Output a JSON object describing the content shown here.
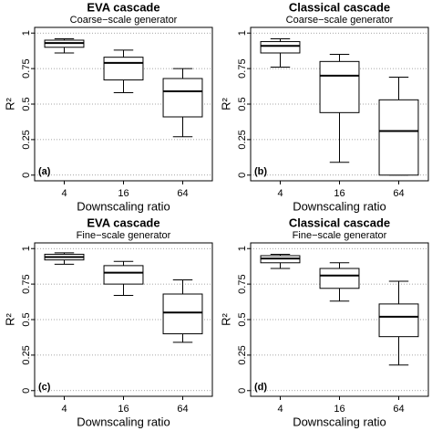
{
  "chart_data": [
    {
      "type": "box",
      "title": "EVA cascade",
      "subtitle": "Coarse−scale generator",
      "panel_label": "(a)",
      "x_label": "Downscaling ratio",
      "y_label": "R²",
      "categories": [
        "4",
        "16",
        "64"
      ],
      "boxes": [
        {
          "min": 0.86,
          "q1": 0.9,
          "median": 0.93,
          "q3": 0.95,
          "max": 0.96
        },
        {
          "min": 0.58,
          "q1": 0.67,
          "median": 0.79,
          "q3": 0.83,
          "max": 0.88
        },
        {
          "min": 0.27,
          "q1": 0.41,
          "median": 0.59,
          "q3": 0.68,
          "max": 0.75
        }
      ],
      "ylim": [
        -0.04,
        1.04
      ],
      "yticks": [
        0,
        0.25,
        0.5,
        0.75,
        1
      ],
      "grid": true
    },
    {
      "type": "box",
      "title": "Classical cascade",
      "subtitle": "Coarse−scale generator",
      "panel_label": "(b)",
      "x_label": "Downscaling ratio",
      "y_label": "R²",
      "categories": [
        "4",
        "16",
        "64"
      ],
      "boxes": [
        {
          "min": 0.76,
          "q1": 0.86,
          "median": 0.91,
          "q3": 0.94,
          "max": 0.96
        },
        {
          "min": 0.09,
          "q1": 0.44,
          "median": 0.7,
          "q3": 0.8,
          "max": 0.85
        },
        {
          "min": 0,
          "q1": 0,
          "median": 0.31,
          "q3": 0.53,
          "max": 0.69
        }
      ],
      "ylim": [
        -0.04,
        1.04
      ],
      "yticks": [
        0,
        0.25,
        0.5,
        0.75,
        1
      ],
      "grid": true
    },
    {
      "type": "box",
      "title": "EVA cascade",
      "subtitle": "Fine−scale generator",
      "panel_label": "(c)",
      "x_label": "Downscaling ratio",
      "y_label": "R²",
      "categories": [
        "4",
        "16",
        "64"
      ],
      "boxes": [
        {
          "min": 0.89,
          "q1": 0.92,
          "median": 0.94,
          "q3": 0.96,
          "max": 0.97
        },
        {
          "min": 0.67,
          "q1": 0.75,
          "median": 0.83,
          "q3": 0.88,
          "max": 0.91
        },
        {
          "min": 0.34,
          "q1": 0.4,
          "median": 0.55,
          "q3": 0.68,
          "max": 0.78
        }
      ],
      "ylim": [
        -0.04,
        1.04
      ],
      "yticks": [
        0,
        0.25,
        0.5,
        0.75,
        1
      ],
      "grid": true
    },
    {
      "type": "box",
      "title": "Classical cascade",
      "subtitle": "Fine−scale generator",
      "panel_label": "(d)",
      "x_label": "Downscaling ratio",
      "y_label": "R²",
      "categories": [
        "4",
        "16",
        "64"
      ],
      "boxes": [
        {
          "min": 0.86,
          "q1": 0.9,
          "median": 0.93,
          "q3": 0.95,
          "max": 0.96
        },
        {
          "min": 0.63,
          "q1": 0.72,
          "median": 0.81,
          "q3": 0.86,
          "max": 0.9
        },
        {
          "min": 0.18,
          "q1": 0.38,
          "median": 0.52,
          "q3": 0.61,
          "max": 0.77
        }
      ],
      "ylim": [
        -0.04,
        1.04
      ],
      "yticks": [
        0,
        0.25,
        0.5,
        0.75,
        1
      ],
      "grid": true
    }
  ]
}
